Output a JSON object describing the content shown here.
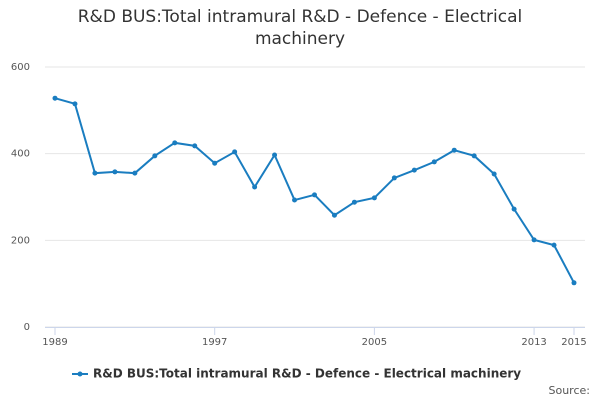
{
  "chart_data": {
    "type": "line",
    "title": "R&D BUS:Total intramural R&D - Defence - Electrical machinery",
    "x": [
      1989,
      1990,
      1991,
      1992,
      1993,
      1994,
      1995,
      1996,
      1997,
      1998,
      1999,
      2000,
      2001,
      2002,
      2003,
      2004,
      2005,
      2006,
      2007,
      2008,
      2009,
      2010,
      2011,
      2012,
      2013,
      2014,
      2015
    ],
    "series": [
      {
        "name": "R&D BUS:Total intramural R&D - Defence - Electrical machinery",
        "color": "#1a7dc0",
        "values": [
          528,
          515,
          355,
          358,
          355,
          395,
          425,
          418,
          378,
          404,
          323,
          397,
          293,
          305,
          258,
          288,
          298,
          344,
          362,
          381,
          408,
          395,
          353,
          272,
          201,
          189,
          102
        ]
      }
    ],
    "xlim": [
      1989,
      2015
    ],
    "xticks": [
      1989,
      1997,
      2005,
      2013,
      2015
    ],
    "ylim": [
      0,
      600
    ],
    "yticks": [
      0,
      200,
      400,
      600
    ],
    "grid": true,
    "legend": "bottom",
    "source": "Source:"
  }
}
